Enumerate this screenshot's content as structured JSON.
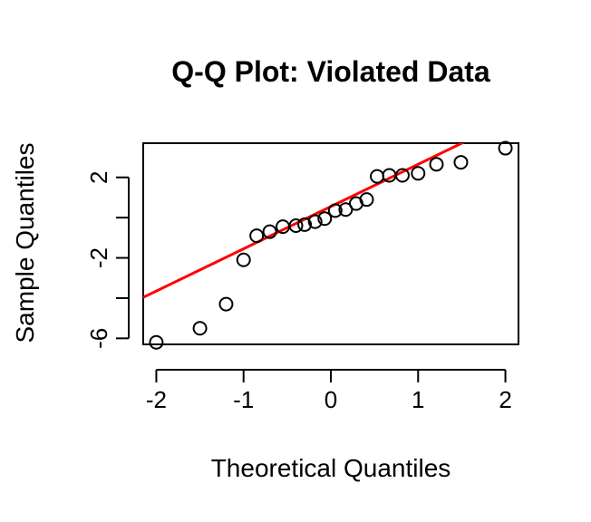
{
  "chart_data": {
    "type": "scatter",
    "title": "Q-Q Plot: Violated Data",
    "xlabel": "Theoretical Quantiles",
    "ylabel": "Sample Quantiles",
    "xlim": [
      -2.15,
      2.15
    ],
    "ylim": [
      -6.3,
      3.7
    ],
    "x_ticks": [
      -2,
      -1,
      0,
      1,
      2
    ],
    "x_tick_labels": [
      "-2",
      "-1",
      "0",
      "1",
      "2"
    ],
    "y_ticks": [
      -6,
      -4,
      -2,
      0,
      2
    ],
    "y_tick_labels": [
      "-6",
      "",
      "-2",
      "",
      "2"
    ],
    "grid": false,
    "points": {
      "x": [
        -2.0,
        -1.5,
        -1.2,
        -1.0,
        -0.85,
        -0.7,
        -0.55,
        -0.4,
        -0.3,
        -0.18,
        -0.07,
        0.05,
        0.17,
        0.29,
        0.41,
        0.53,
        0.67,
        0.82,
        1.0,
        1.21,
        1.49,
        2.0
      ],
      "y": [
        -6.2,
        -5.5,
        -4.3,
        -2.1,
        -0.9,
        -0.7,
        -0.45,
        -0.4,
        -0.35,
        -0.2,
        -0.05,
        0.35,
        0.4,
        0.7,
        0.9,
        2.05,
        2.1,
        2.1,
        2.2,
        2.65,
        2.75,
        3.45
      ]
    },
    "reference_line": {
      "color": "#ff0000",
      "intercept": 0.55,
      "slope": 2.1
    },
    "point_style": {
      "shape": "open-circle",
      "color": "#000000"
    }
  }
}
